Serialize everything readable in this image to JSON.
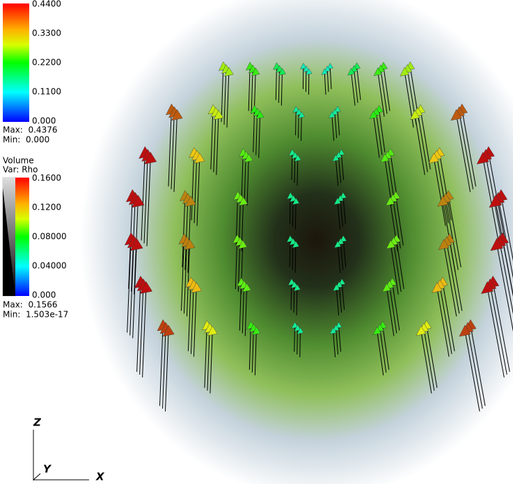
{
  "legend_vector": {
    "ticks": [
      "0.4400",
      "0.3300",
      "0.2200",
      "0.1100",
      "0.000"
    ],
    "max": "Max:  0.4376",
    "min": "Min:  0.000"
  },
  "legend_volume": {
    "title": "Volume",
    "variable": "Var: Rho",
    "ticks": [
      "0.1600",
      "0.1200",
      "0.08000",
      "0.04000",
      "0.000"
    ],
    "max": "Max:  0.1566",
    "min": "Min:  1.503e-17"
  },
  "axes": {
    "z": "Z",
    "y": "Y",
    "x": "X"
  }
}
